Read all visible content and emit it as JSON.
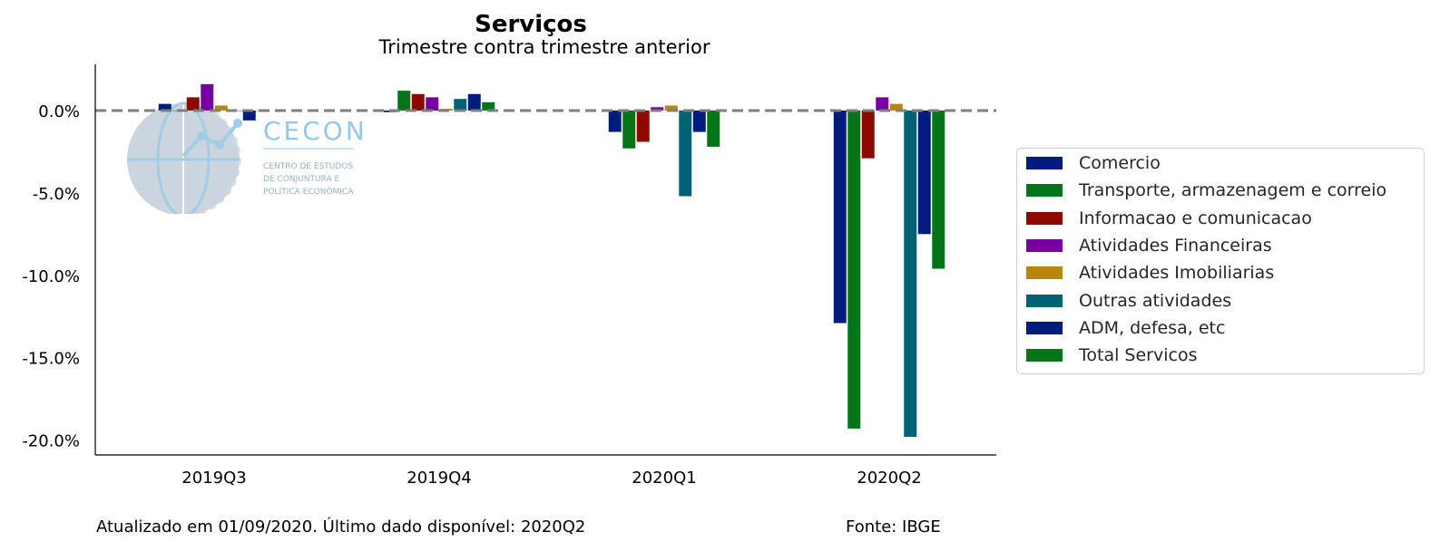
{
  "chart_data": {
    "type": "bar",
    "title": "Serviços",
    "subtitle": "Trimestre contra trimestre anterior",
    "categories": [
      "2019Q3",
      "2019Q4",
      "2020Q1",
      "2020Q2"
    ],
    "y_tick_labels": [
      "0.0%",
      "-5.0%",
      "-10.0%",
      "-15.0%",
      "-20.0%"
    ],
    "y_ticks": [
      0,
      -5,
      -10,
      -15,
      -20
    ],
    "ylim": [
      -20.9,
      2.8
    ],
    "reference_line": {
      "value": 0,
      "style": "dashed",
      "color": "#7f7f7f"
    },
    "legend_position": "right",
    "series": [
      {
        "name": "Comercio",
        "color": "#001c7f",
        "values": [
          0.4,
          -0.1,
          -1.3,
          -12.9
        ]
      },
      {
        "name": "Transporte, armazenagem e correio",
        "color": "#017517",
        "values": [
          0.0,
          1.2,
          -2.3,
          -19.3
        ]
      },
      {
        "name": "Informacao e comunicacao",
        "color": "#8c0900",
        "values": [
          0.8,
          1.0,
          -1.9,
          -2.9
        ]
      },
      {
        "name": "Atividades Financeiras",
        "color": "#7600a1",
        "values": [
          1.6,
          0.8,
          0.2,
          0.8
        ]
      },
      {
        "name": "Atividades Imobiliarias",
        "color": "#b8860b",
        "values": [
          0.3,
          0.1,
          0.3,
          0.4
        ]
      },
      {
        "name": "Outras atividades",
        "color": "#006374",
        "values": [
          0.0,
          0.7,
          -5.2,
          -19.8
        ]
      },
      {
        "name": "ADM, defesa, etc",
        "color": "#001c7f",
        "values": [
          -0.6,
          1.0,
          -1.3,
          -7.5
        ]
      },
      {
        "name": "Total Servicos",
        "color": "#017517",
        "values": [
          0.0,
          0.5,
          -2.2,
          -9.6
        ]
      }
    ]
  },
  "footer": {
    "updated": "Atualizado em 01/09/2020. Último dado disponível: 2020Q2",
    "source": "Fonte: IBGE"
  },
  "logo": {
    "name": "CECON",
    "line1": "CENTRO DE ESTUDOS",
    "line2": "DE CONJUNTURA E",
    "line3": "POLÍTICA ECONÔMICA"
  }
}
